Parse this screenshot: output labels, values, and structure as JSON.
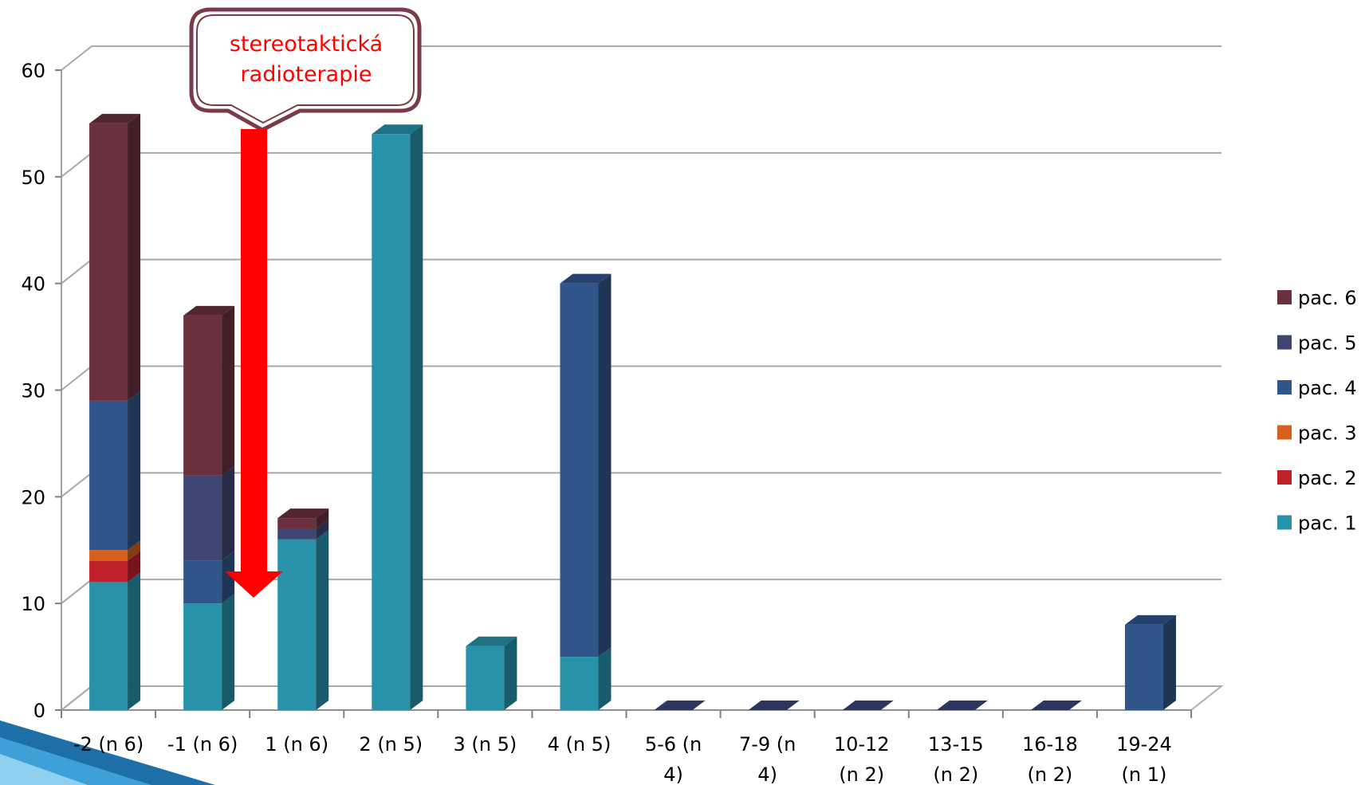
{
  "chart_data": {
    "type": "bar",
    "stacked": true,
    "view": "3d",
    "categories": [
      [
        "-2 (n 6)"
      ],
      [
        "-1 (n 6)"
      ],
      [
        "1 (n 6)"
      ],
      [
        "2 (n 5)"
      ],
      [
        "3 (n 5)"
      ],
      [
        "4 (n 5)"
      ],
      [
        "5-6 (n",
        "4)"
      ],
      [
        "7-9 (n",
        "4)"
      ],
      [
        "10-12",
        "(n 2)"
      ],
      [
        "13-15",
        "(n 2)"
      ],
      [
        "16-18",
        "(n 2)"
      ],
      [
        "19-24",
        "(n 1)"
      ]
    ],
    "series": [
      {
        "name": "pac. 1",
        "color": "#2892ab",
        "values": [
          12,
          10,
          16,
          54,
          6,
          5,
          0,
          0,
          0,
          0,
          0,
          0
        ]
      },
      {
        "name": "pac. 2",
        "color": "#c0202a",
        "values": [
          2,
          0,
          0,
          0,
          0,
          0,
          0,
          0,
          0,
          0,
          0,
          0
        ]
      },
      {
        "name": "pac. 3",
        "color": "#d8601c",
        "values": [
          1,
          0,
          0,
          0,
          0,
          0,
          0,
          0,
          0,
          0,
          0,
          0
        ]
      },
      {
        "name": "pac. 4",
        "color": "#30558a",
        "values": [
          14,
          4,
          0,
          0,
          0,
          35,
          0,
          0,
          0,
          0,
          0,
          8
        ]
      },
      {
        "name": "pac. 5",
        "color": "#3f4573",
        "values": [
          0,
          8,
          1,
          0,
          0,
          0,
          0,
          0,
          0,
          0,
          0,
          0
        ]
      },
      {
        "name": "pac. 6",
        "color": "#6b303e",
        "values": [
          26,
          15,
          1,
          0,
          0,
          0,
          0,
          0,
          0,
          0,
          0,
          0
        ]
      }
    ],
    "yticks": [
      "0",
      "10",
      "20",
      "30",
      "40",
      "50",
      "60"
    ],
    "ylim": [
      0,
      60
    ],
    "grid": true,
    "legend": "right",
    "annotation": {
      "lines": [
        "stereotaktická",
        "radioterapie"
      ],
      "border_color": "#7a3a4a",
      "text_color": "#ff0000",
      "arrow_color": "#ff0000"
    }
  }
}
